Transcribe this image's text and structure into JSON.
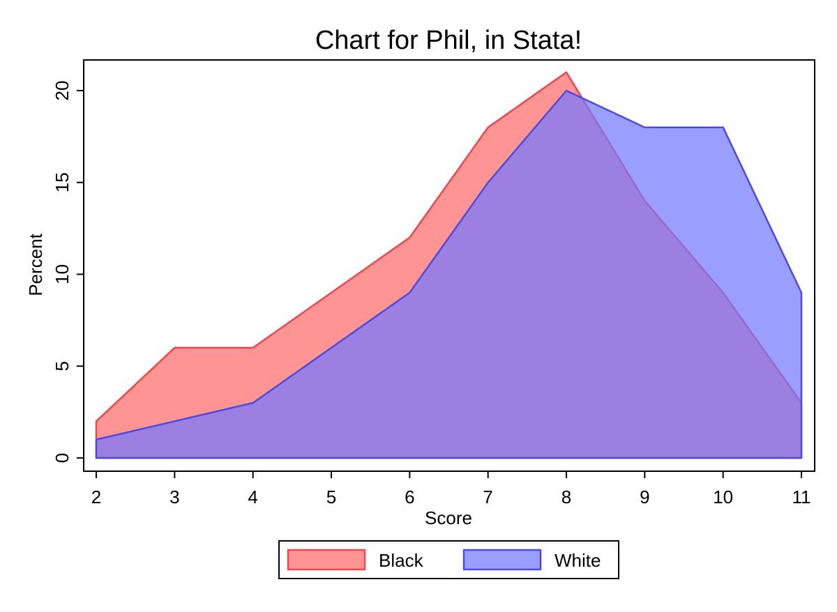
{
  "chart_data": {
    "type": "area",
    "title": "Chart for Phil, in Stata!",
    "xlabel": "Score",
    "ylabel": "Percent",
    "x": [
      2,
      3,
      4,
      5,
      6,
      7,
      8,
      9,
      10,
      11
    ],
    "xlim": [
      2,
      11
    ],
    "ylim": [
      0,
      21
    ],
    "xticks": [
      2,
      3,
      4,
      5,
      6,
      7,
      8,
      9,
      10,
      11
    ],
    "yticks": [
      0,
      5,
      10,
      15,
      20
    ],
    "grid": false,
    "legend_position": "bottom",
    "series": [
      {
        "name": "Black",
        "values": [
          2,
          6,
          6,
          9,
          12,
          18,
          21,
          14,
          9,
          3
        ],
        "color": "#ff6b6b",
        "line_color": "#e8484f"
      },
      {
        "name": "White",
        "values": [
          1,
          2,
          3,
          6,
          9,
          15,
          20,
          18,
          18,
          9
        ],
        "color": "#7577ff",
        "line_color": "#4b4be0"
      }
    ]
  }
}
